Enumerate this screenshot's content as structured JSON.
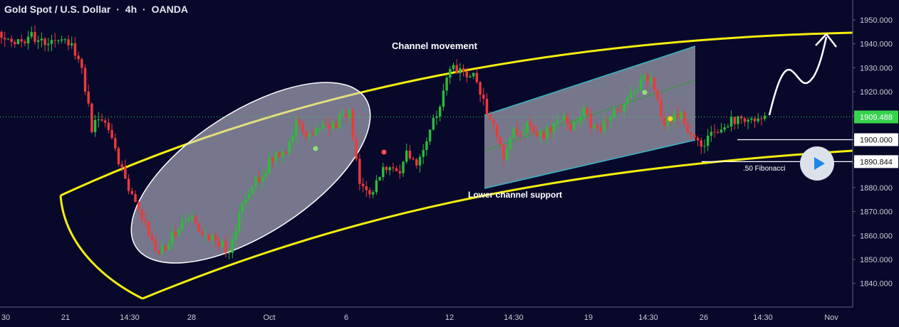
{
  "header": {
    "symbol": "Gold Spot / U.S. Dollar",
    "sep1": "·",
    "interval": "4h",
    "sep2": "·",
    "source": "OANDA"
  },
  "colors": {
    "background": "#08082b",
    "up": "#2bbd3a",
    "down": "#ef3a3a",
    "channel": "#f5ee0d",
    "box_edge": "#37b7c4",
    "current_price": "#37d34e",
    "arrow": "#ffffff"
  },
  "annotations": {
    "channel_movement": "Channel movement",
    "lower_support": "Lower channel support",
    "fibonacci": ".50 Fibonacci"
  },
  "chart_data": {
    "type": "candlestick",
    "y_ticks": [
      1950,
      1940,
      1930,
      1920,
      1910,
      1900,
      1890,
      1880,
      1870,
      1860,
      1850,
      1840
    ],
    "y_tick_labels": [
      "1950.000",
      "1940.000",
      "1930.000",
      "1920.000",
      "1910.000",
      "1900.000",
      "1890.000",
      "1880.000",
      "1870.000",
      "1860.000",
      "1850.000",
      "1840.000"
    ],
    "ylim": [
      1831,
      1955
    ],
    "x_tick_labels": [
      "30",
      "21",
      "14:30",
      "28",
      "Oct",
      "6",
      "12",
      "14:30",
      "19",
      "14:30",
      "26",
      "14:30",
      "Nov"
    ],
    "price_labels": [
      {
        "value": 1909.488,
        "label": "1909.488",
        "style": "current"
      },
      {
        "value": 1900.0,
        "label": "1900.000",
        "style": "level"
      },
      {
        "value": 1890.844,
        "label": "1890.844",
        "style": "level"
      }
    ],
    "current_price": 1909.488,
    "waypoints": [
      [
        0,
        1945
      ],
      [
        4,
        1940
      ],
      [
        9,
        1943
      ],
      [
        14,
        1940
      ],
      [
        19,
        1944
      ],
      [
        24,
        1930
      ],
      [
        27,
        1905
      ],
      [
        30,
        1910
      ],
      [
        34,
        1896
      ],
      [
        38,
        1878
      ],
      [
        43,
        1864
      ],
      [
        47,
        1852
      ],
      [
        50,
        1858
      ],
      [
        55,
        1868
      ],
      [
        60,
        1862
      ],
      [
        65,
        1857
      ],
      [
        68,
        1852
      ],
      [
        72,
        1875
      ],
      [
        77,
        1885
      ],
      [
        81,
        1892
      ],
      [
        85,
        1893
      ],
      [
        88,
        1906
      ],
      [
        92,
        1900
      ],
      [
        96,
        1907
      ],
      [
        100,
        1906
      ],
      [
        102,
        1913
      ],
      [
        104,
        1910
      ],
      [
        107,
        1884
      ],
      [
        110,
        1878
      ],
      [
        114,
        1888
      ],
      [
        118,
        1885
      ],
      [
        121,
        1894
      ],
      [
        124,
        1890
      ],
      [
        128,
        1904
      ],
      [
        132,
        1920
      ],
      [
        135,
        1931
      ],
      [
        138,
        1926
      ],
      [
        141,
        1927
      ],
      [
        144,
        1917
      ],
      [
        146,
        1909
      ],
      [
        148,
        1902
      ],
      [
        150,
        1892
      ],
      [
        153,
        1903
      ],
      [
        158,
        1906
      ],
      [
        162,
        1901
      ],
      [
        166,
        1910
      ],
      [
        170,
        1906
      ],
      [
        174,
        1911
      ],
      [
        178,
        1904
      ],
      [
        182,
        1910
      ],
      [
        185,
        1913
      ],
      [
        189,
        1919
      ],
      [
        192,
        1929
      ],
      [
        195,
        1922
      ],
      [
        198,
        1906
      ],
      [
        201,
        1909
      ],
      [
        203,
        1910
      ],
      [
        206,
        1900
      ],
      [
        209,
        1898
      ],
      [
        213,
        1904
      ],
      [
        217,
        1906
      ],
      [
        221,
        1910
      ],
      [
        225,
        1909
      ],
      [
        229,
        1910
      ]
    ]
  }
}
